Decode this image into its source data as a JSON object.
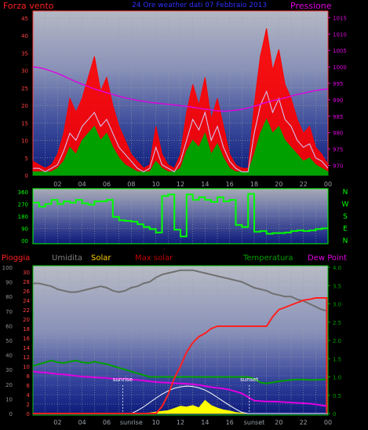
{
  "header": {
    "left_title": "Forza vento",
    "center_title": "24 Ore weather dati 07 Febbraio 2013",
    "right_title": "Pressione"
  },
  "colors": {
    "wind_gust": "#ff0000",
    "wind_avg": "#00a000",
    "wind_mean_line": "#d0d0ff",
    "pressure": "#e000e0",
    "direction": "#00ff00",
    "rain": "#ff2020",
    "humidity": "#707070",
    "solar": "#ffff00",
    "max_solar": "#ffffff",
    "temperature": "#00a000",
    "dew_point": "#e000e0",
    "grid": "#9aa0a8"
  },
  "chart_data": [
    {
      "type": "line",
      "name": "wind_pressure",
      "x_tick_labels": [
        "02",
        "04",
        "06",
        "08",
        "10",
        "12",
        "14",
        "16",
        "18",
        "20",
        "22",
        "00"
      ],
      "y_left_label": "Forza vento",
      "y_left_ticks": [
        0,
        5,
        10,
        15,
        20,
        25,
        30,
        35,
        40,
        45
      ],
      "ylim_left": [
        0,
        47
      ],
      "y_right_label": "Pressione",
      "y_right_ticks": [
        970,
        975,
        980,
        985,
        990,
        995,
        1000,
        1005,
        1010,
        1015
      ],
      "ylim_right": [
        967,
        1017
      ],
      "x_hours": [
        0,
        0.5,
        1,
        1.5,
        2,
        2.5,
        3,
        3.5,
        4,
        4.5,
        5,
        5.5,
        6,
        6.5,
        7,
        7.5,
        8,
        8.5,
        9,
        9.5,
        10,
        10.5,
        11,
        11.5,
        12,
        12.5,
        13,
        13.5,
        14,
        14.5,
        15,
        15.5,
        16,
        16.5,
        17,
        17.5,
        18,
        18.5,
        19,
        19.5,
        20,
        20.5,
        21,
        21.5,
        22,
        22.5,
        23,
        23.5,
        24
      ],
      "series": [
        {
          "key": "gust",
          "values": [
            4,
            3,
            2,
            3,
            6,
            12,
            22,
            18,
            22,
            28,
            34,
            24,
            28,
            20,
            14,
            10,
            6,
            4,
            2,
            3,
            14,
            6,
            3,
            2,
            6,
            18,
            26,
            20,
            28,
            16,
            22,
            14,
            6,
            3,
            2,
            2,
            20,
            34,
            42,
            30,
            36,
            26,
            22,
            16,
            12,
            14,
            8,
            6,
            3
          ]
        },
        {
          "key": "avg",
          "values": [
            1,
            1,
            1,
            1,
            2,
            4,
            8,
            6,
            10,
            12,
            14,
            10,
            12,
            8,
            5,
            3,
            2,
            1,
            1,
            1,
            4,
            2,
            1,
            1,
            2,
            7,
            10,
            8,
            12,
            6,
            9,
            5,
            2,
            1,
            1,
            1,
            6,
            12,
            16,
            12,
            14,
            10,
            8,
            6,
            4,
            5,
            3,
            2,
            1
          ]
        },
        {
          "key": "mean",
          "values": [
            2,
            2,
            1,
            2,
            3,
            7,
            12,
            10,
            14,
            16,
            18,
            14,
            16,
            12,
            8,
            6,
            4,
            2,
            1,
            2,
            8,
            3,
            2,
            1,
            4,
            10,
            16,
            13,
            18,
            10,
            14,
            8,
            4,
            2,
            1,
            1,
            12,
            20,
            24,
            18,
            22,
            16,
            14,
            10,
            8,
            9,
            5,
            4,
            2
          ]
        },
        {
          "key": "pressure",
          "values": [
            1000,
            999.8,
            999.3,
            998.7,
            998,
            997.2,
            996.3,
            995.5,
            994.7,
            994,
            993.3,
            992.7,
            992.1,
            991.6,
            991.1,
            990.6,
            990.2,
            989.8,
            989.5,
            989.2,
            989,
            988.8,
            988.6,
            988.4,
            988.2,
            988,
            987.7,
            987.4,
            987.1,
            986.9,
            986.6,
            986.5,
            986.6,
            986.8,
            987.1,
            987.5,
            988,
            988.6,
            989.2,
            989.7,
            990.1,
            990.6,
            991.1,
            991.6,
            992,
            992.4,
            992.8,
            993.1,
            993.3
          ]
        }
      ]
    },
    {
      "type": "line",
      "name": "wind_direction",
      "y_tick_labels": [
        "360",
        "270",
        "180",
        "90",
        "00"
      ],
      "ylim": [
        0,
        360
      ],
      "right_compass": [
        "N",
        "W",
        "S",
        "E",
        "N"
      ],
      "x_hours": [
        0,
        0.5,
        1,
        1.5,
        2,
        2.5,
        3,
        3.5,
        4,
        4.5,
        5,
        5.5,
        6,
        6.5,
        7,
        7.5,
        8,
        8.5,
        9,
        9.5,
        10,
        10.5,
        11,
        11.5,
        12,
        12.5,
        13,
        13.5,
        14,
        14.5,
        15,
        15.5,
        16,
        16.5,
        17,
        17.5,
        18,
        18.5,
        19,
        19.5,
        20,
        20.5,
        21,
        21.5,
        22,
        22.5,
        23,
        23.5,
        24
      ],
      "values": [
        280,
        250,
        270,
        300,
        270,
        290,
        280,
        300,
        275,
        265,
        290,
        290,
        300,
        175,
        150,
        145,
        140,
        120,
        100,
        85,
        60,
        330,
        340,
        80,
        30,
        340,
        300,
        320,
        300,
        285,
        320,
        290,
        300,
        115,
        100,
        345,
        65,
        70,
        50,
        55,
        55,
        60,
        70,
        75,
        70,
        75,
        85,
        90,
        90
      ]
    },
    {
      "type": "line",
      "name": "rain_temp_solar",
      "legend": [
        "Pioggia",
        "Umidita",
        "Solar",
        "Max solar",
        "Temperatura",
        "Dew Point"
      ],
      "y_left_humidity_ticks": [
        0,
        10,
        20,
        30,
        40,
        50,
        60,
        70,
        80,
        90,
        100
      ],
      "y_left_rain_ticks": [
        0,
        2,
        4,
        6,
        8,
        10,
        12,
        14,
        16,
        18,
        20,
        22,
        24,
        26,
        28,
        30
      ],
      "ylim_rain": [
        0,
        31
      ],
      "y_right_ticks": [
        "0",
        "0.5",
        "1.0",
        "1.5",
        "2.0",
        "2.5",
        "3.0",
        "3.5",
        "4.0"
      ],
      "y_right_values": [
        0,
        0.5,
        1,
        1.5,
        2,
        2.5,
        3,
        3.5,
        4
      ],
      "x_tick_labels": [
        "02",
        "04",
        "06",
        "sunrise",
        "10",
        "12",
        "14",
        "16",
        "sunset",
        "20",
        "22",
        "00"
      ],
      "annotations": {
        "sunrise": "sunrise",
        "sunset": "sunset"
      },
      "x_hours": [
        0,
        0.5,
        1,
        1.5,
        2,
        2.5,
        3,
        3.5,
        4,
        4.5,
        5,
        5.5,
        6,
        6.5,
        7,
        7.5,
        8,
        8.5,
        9,
        9.5,
        10,
        10.5,
        11,
        11.5,
        12,
        12.5,
        13,
        13.5,
        14,
        14.5,
        15,
        15.5,
        16,
        16.5,
        17,
        17.5,
        18,
        18.5,
        19,
        19.5,
        20,
        20.5,
        21,
        21.5,
        22,
        22.5,
        23,
        23.5,
        24
      ],
      "series": [
        {
          "key": "humidity",
          "values": [
            89,
            89,
            88,
            87,
            85,
            84,
            83,
            83,
            84,
            85,
            86,
            87,
            86,
            84,
            83,
            84,
            86,
            87,
            89,
            90,
            93,
            95,
            96,
            97,
            98,
            98,
            98,
            97,
            96,
            95,
            94,
            93,
            92,
            91,
            90,
            88,
            86,
            85,
            84,
            82,
            81,
            80,
            80,
            78,
            77,
            75,
            73,
            71,
            70
          ]
        },
        {
          "key": "rain",
          "values": [
            0,
            0,
            0,
            0,
            0,
            0,
            0,
            0,
            0,
            0,
            0,
            0,
            0,
            0,
            0,
            0,
            0,
            0,
            0,
            0,
            0,
            1.5,
            4,
            7.5,
            10,
            13,
            15,
            16.3,
            17,
            18,
            18.5,
            18.5,
            18.5,
            18.5,
            18.5,
            18.5,
            18.5,
            18.5,
            18.5,
            20.5,
            22,
            22.5,
            23,
            23.5,
            24,
            24.2,
            24.5,
            24.5,
            0
          ]
        },
        {
          "key": "temperature",
          "values": [
            1.3,
            1.35,
            1.4,
            1.45,
            1.4,
            1.38,
            1.42,
            1.45,
            1.4,
            1.38,
            1.42,
            1.38,
            1.35,
            1.3,
            1.25,
            1.2,
            1.15,
            1.1,
            1.05,
            1.0,
            1.0,
            1.0,
            1.0,
            1.0,
            1.0,
            1.0,
            1.0,
            1.0,
            1.0,
            1.0,
            1.0,
            1.0,
            1.0,
            1.0,
            1.0,
            1.0,
            0.95,
            0.85,
            0.82,
            0.85,
            0.88,
            0.9,
            0.92,
            0.93,
            0.93,
            0.92,
            0.92,
            0.93,
            0.93
          ]
        },
        {
          "key": "dew_point",
          "values": [
            1.15,
            1.13,
            1.12,
            1.1,
            1.08,
            1.07,
            1.05,
            1.03,
            1.01,
            1.0,
            0.99,
            0.98,
            0.97,
            0.95,
            0.95,
            0.95,
            0.93,
            0.92,
            0.9,
            0.88,
            0.86,
            0.85,
            0.84,
            0.83,
            0.82,
            0.81,
            0.8,
            0.78,
            0.75,
            0.72,
            0.7,
            0.68,
            0.65,
            0.6,
            0.55,
            0.45,
            0.35,
            0.34,
            0.33,
            0.33,
            0.32,
            0.31,
            0.3,
            0.29,
            0.28,
            0.27,
            0.25,
            0.22,
            0.2
          ]
        },
        {
          "key": "max_solar",
          "values": [
            0,
            0,
            0,
            0,
            0,
            0,
            0,
            0,
            0,
            0,
            0,
            0,
            0,
            0,
            0,
            0,
            0,
            0.08,
            0.18,
            0.3,
            0.42,
            0.53,
            0.62,
            0.69,
            0.73,
            0.75,
            0.74,
            0.7,
            0.64,
            0.55,
            0.44,
            0.33,
            0.22,
            0.12,
            0.03,
            0,
            0,
            0,
            0,
            0,
            0,
            0,
            0,
            0,
            0,
            0,
            0,
            0,
            0
          ]
        },
        {
          "key": "solar",
          "values": [
            0,
            0,
            0,
            0,
            0,
            0,
            0,
            0,
            0,
            0,
            0,
            0,
            0,
            0,
            0,
            0,
            0,
            0,
            0.01,
            0.02,
            0.04,
            0.06,
            0.08,
            0.14,
            0.2,
            0.18,
            0.22,
            0.16,
            0.36,
            0.22,
            0.15,
            0.1,
            0.07,
            0.03,
            0.01,
            0,
            0,
            0,
            0,
            0,
            0,
            0,
            0,
            0,
            0,
            0,
            0,
            0,
            0
          ]
        }
      ]
    }
  ]
}
